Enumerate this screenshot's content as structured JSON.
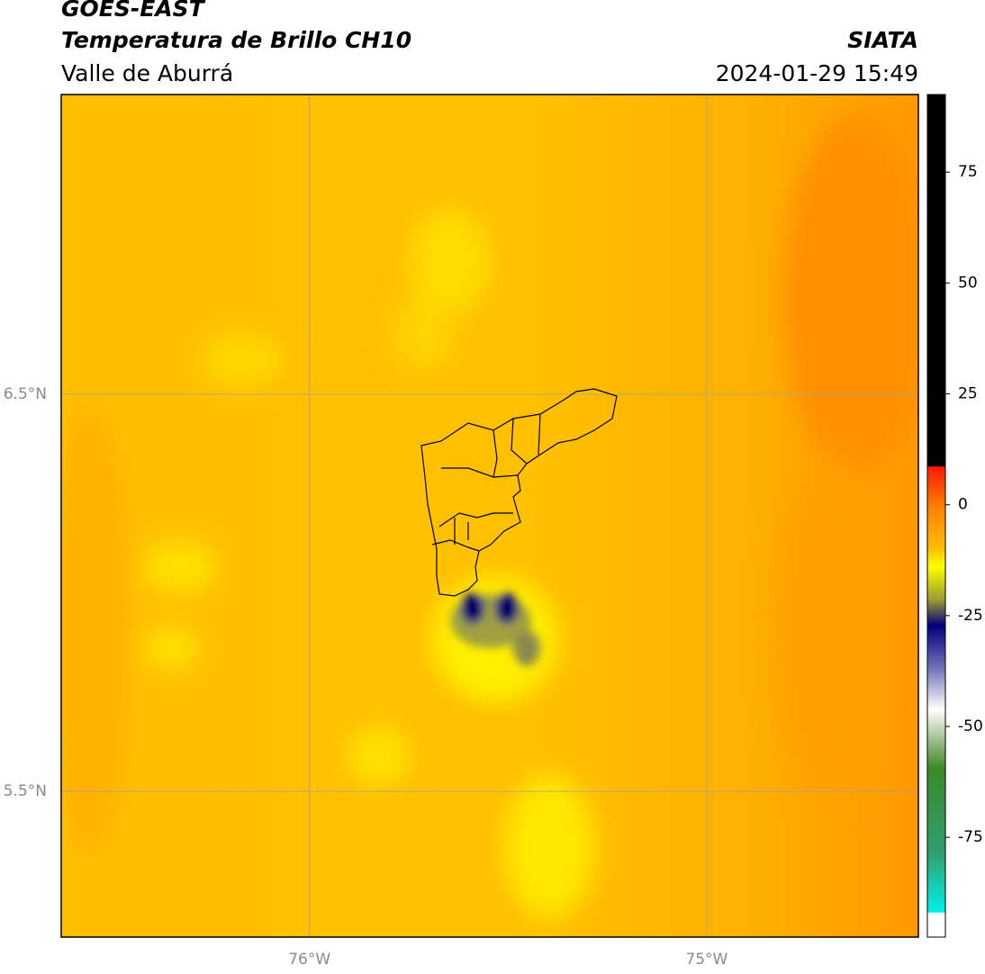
{
  "header": {
    "title": "GOES-EAST",
    "subtitle": "Temperatura de Brillo CH10",
    "region": "Valle de Aburrá",
    "source": "SIATA",
    "datetime": "2024-01-29 15:49"
  },
  "map": {
    "xlim": [
      -76.625,
      -74.467
    ],
    "ylim": [
      5.133,
      7.255
    ],
    "xticks": [
      {
        "value": -76,
        "label": "76°W"
      },
      {
        "value": -75,
        "label": "75°W"
      }
    ],
    "yticks": [
      {
        "value": 6.5,
        "label": "6.5°N"
      },
      {
        "value": 5.5,
        "label": "5.5°N"
      }
    ],
    "grid": true
  },
  "colorbar": {
    "lim": [
      -97.5,
      92.5
    ],
    "ticks": [
      75,
      50,
      25,
      0,
      -25,
      -50,
      -75
    ]
  }
}
